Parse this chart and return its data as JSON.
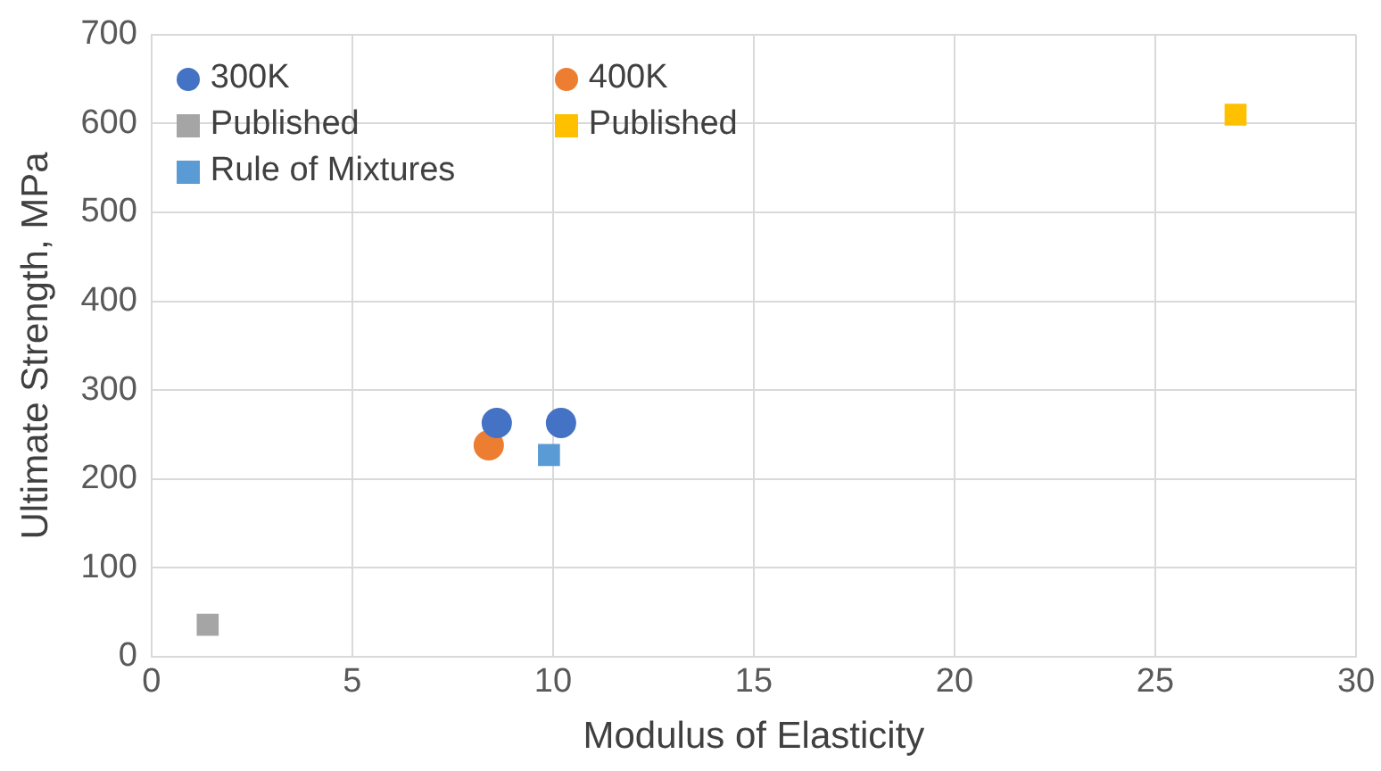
{
  "chart_data": {
    "type": "scatter",
    "xlabel": "Modulus of Elasticity",
    "ylabel": "Ultimate Strength, MPa",
    "xlim": [
      0,
      30
    ],
    "xticks": [
      0,
      5,
      10,
      15,
      20,
      25,
      30
    ],
    "ylim": [
      0,
      700
    ],
    "yticks": [
      0,
      100,
      200,
      300,
      400,
      500,
      600,
      700
    ],
    "grid": true,
    "legend": "top left",
    "series": [
      {
        "name": "300K",
        "color": "#4472c4",
        "marker": "circle",
        "x": [
          8.6,
          10.2
        ],
        "values": [
          263,
          263
        ]
      },
      {
        "name": "400K",
        "color": "#ed7d31",
        "marker": "circle",
        "x": [
          8.4
        ],
        "values": [
          238
        ]
      },
      {
        "name": "Published",
        "color": "#a5a5a5",
        "marker": "square",
        "x": [
          1.4
        ],
        "values": [
          36
        ]
      },
      {
        "name": "Published",
        "color": "#ffc000",
        "marker": "square",
        "x": [
          27
        ],
        "values": [
          610
        ]
      },
      {
        "name": "Rule of Mixtures",
        "color": "#5b9bd5",
        "marker": "square",
        "x": [
          9.9
        ],
        "values": [
          227
        ]
      }
    ]
  }
}
